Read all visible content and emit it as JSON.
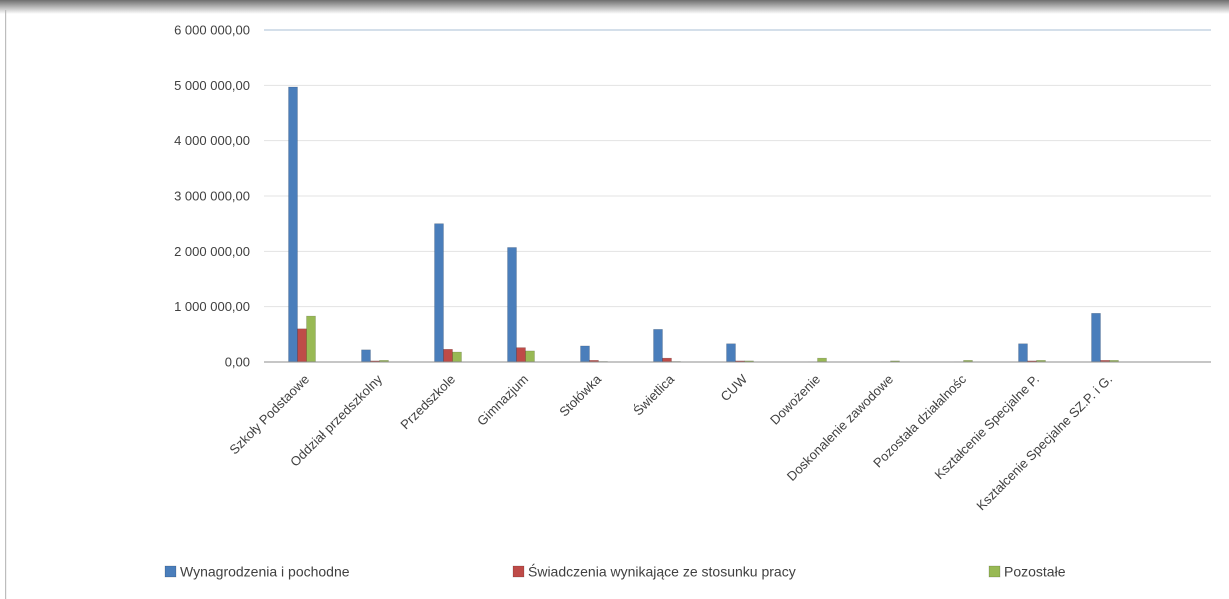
{
  "chart_data": {
    "type": "bar",
    "title": "",
    "xlabel": "",
    "ylabel": "",
    "ylim": [
      0,
      6000000
    ],
    "yticks": [
      0,
      1000000,
      2000000,
      3000000,
      4000000,
      5000000,
      6000000
    ],
    "ytick_labels": [
      "0,00",
      "1 000 000,00",
      "2 000 000,00",
      "3 000 000,00",
      "4 000 000,00",
      "5 000 000,00",
      "6 000 000,00"
    ],
    "grid": true,
    "legend_position": "bottom",
    "categories": [
      "Szkoły Podstaowe",
      "Oddział przedszkolny",
      "Przedszkole",
      "Gimnazjum",
      "Stołówka",
      "Świetlica",
      "CUW",
      "Dowożenie",
      "Doskonalenie zawodowe",
      "Pozostała działalnośc",
      "Kształcenie Specjalne P.",
      "Kształcenie Specjalne SZ.P. i G."
    ],
    "series": [
      {
        "name": "Wynagrodzenia i pochodne",
        "color": "#4a7ebb",
        "values": [
          4970000,
          220000,
          2500000,
          2070000,
          290000,
          590000,
          330000,
          0,
          0,
          0,
          330000,
          880000
        ]
      },
      {
        "name": "Świadczenia wynikające ze stosunku pracy",
        "color": "#be4b48",
        "values": [
          600000,
          20000,
          230000,
          260000,
          30000,
          70000,
          20000,
          5000,
          5000,
          5000,
          20000,
          30000
        ]
      },
      {
        "name": "Pozostałe",
        "color": "#98b954",
        "values": [
          830000,
          30000,
          180000,
          200000,
          10000,
          10000,
          20000,
          70000,
          20000,
          30000,
          30000,
          30000
        ]
      }
    ]
  }
}
